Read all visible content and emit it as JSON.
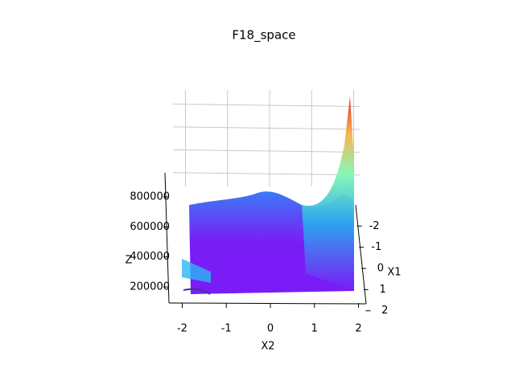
{
  "chart_data": {
    "type": "surface",
    "title": "F18_space",
    "xlabel": "X2",
    "ylabel": "X1",
    "zlabel": "Z",
    "xlim": [
      -2.2,
      2.2
    ],
    "xticks": [
      -2,
      -1,
      0,
      1,
      2
    ],
    "ylim": [
      -2.2,
      2.2
    ],
    "yticks": [
      -2,
      -1,
      0,
      1,
      2
    ],
    "zlim": [
      100000,
      1000000
    ],
    "zticks": [
      200000,
      400000,
      600000,
      800000
    ],
    "grid": true,
    "colormap": "rainbow"
  }
}
